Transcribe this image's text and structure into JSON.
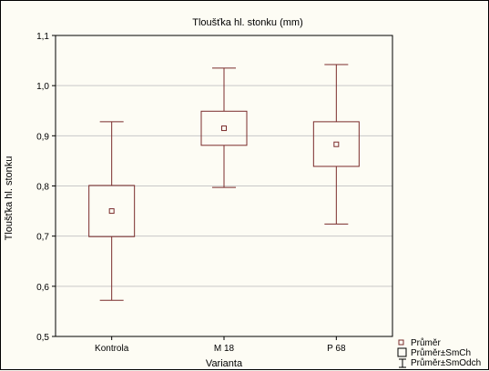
{
  "chart_data": {
    "type": "box",
    "title": "Tloušťka hl. stonku (mm)",
    "xlabel": "Varianta",
    "ylabel": "Tloušťka hl. stonku",
    "ylim": [
      0.5,
      1.1
    ],
    "yticks": [
      "0,5",
      "0,6",
      "0,7",
      "0,8",
      "0,9",
      "1,0",
      "1,1"
    ],
    "grid": true,
    "categories": [
      "Kontrola",
      "M 18",
      "P 68"
    ],
    "mean": [
      0.75,
      0.915,
      0.883
    ],
    "box_low": [
      0.699,
      0.881,
      0.839
    ],
    "box_high": [
      0.801,
      0.949,
      0.928
    ],
    "whisker_low": [
      0.572,
      0.797,
      0.724
    ],
    "whisker_high": [
      0.928,
      1.035,
      1.042
    ],
    "legend": {
      "placement": "bottom-right",
      "entries": [
        "Průměr",
        "Průměr±SmCh",
        "Průměr±SmOdch"
      ]
    },
    "colors": {
      "series": "#7a2b2b",
      "grid": "#c8c8c8",
      "background": "#fdfcf4"
    }
  }
}
